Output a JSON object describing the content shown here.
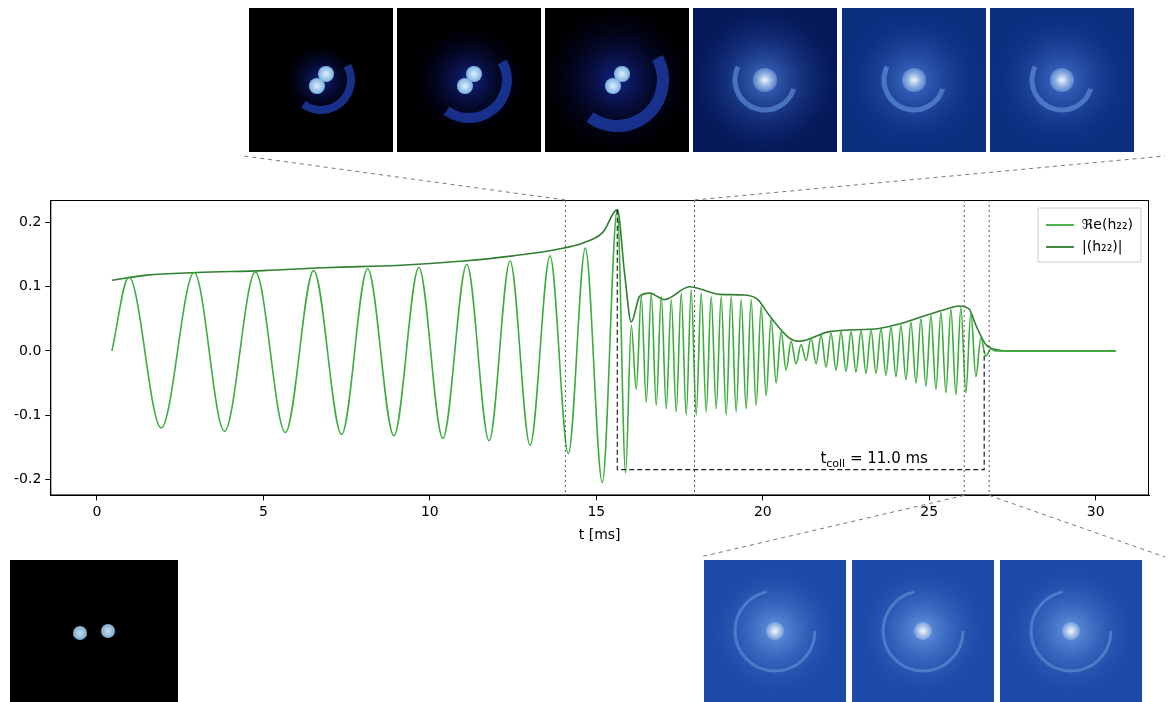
{
  "chart_data": {
    "type": "line",
    "x_label": "t [ms]",
    "xlim": [
      -1.4,
      31.6
    ],
    "xticks": [
      0,
      5,
      10,
      15,
      20,
      25,
      30
    ],
    "ylim": [
      -0.225,
      0.235
    ],
    "yticks": [
      -0.2,
      -0.1,
      {
        "value": 0,
        "label": "0.0"
      },
      0.1,
      0.2
    ],
    "grid": false,
    "legend": "upper right",
    "series": [
      {
        "name": "ℜe(h₂₂)",
        "color": "#3cac3c",
        "x": [
          0.45,
          0.96,
          1.93,
          2.92,
          3.83,
          4.76,
          5.66,
          6.51,
          7.35,
          8.13,
          8.92,
          9.67,
          10.39,
          11.11,
          11.78,
          12.41,
          13.01,
          13.61,
          14.16,
          14.67,
          15.18,
          15.63,
          15.88,
          16.05,
          16.2,
          16.35,
          16.5,
          16.65,
          16.8,
          16.95,
          17.1,
          17.25,
          17.4,
          17.55,
          17.7,
          17.85,
          18.0,
          18.15,
          18.3,
          18.45,
          18.6,
          18.75,
          18.9,
          19.05,
          19.2,
          19.35,
          19.5,
          19.65,
          19.8,
          19.95,
          20.1,
          20.25,
          20.4,
          20.55,
          20.7,
          20.85,
          21.0,
          21.15,
          21.3,
          21.45,
          21.6,
          21.75,
          21.9,
          22.05,
          22.2,
          22.35,
          22.5,
          22.65,
          22.8,
          22.95,
          23.1,
          23.25,
          23.4,
          23.55,
          23.7,
          23.85,
          24.0,
          24.15,
          24.3,
          24.45,
          24.6,
          24.75,
          24.9,
          25.05,
          25.2,
          25.35,
          25.5,
          25.65,
          25.8,
          25.95,
          26.1,
          26.25,
          26.4,
          26.55,
          26.7,
          26.85,
          27.0,
          30.6
        ],
        "values": [
          0,
          0.115,
          -0.12,
          0.122,
          -0.125,
          0.123,
          -0.127,
          0.125,
          -0.13,
          0.128,
          -0.132,
          0.13,
          -0.136,
          0.135,
          -0.14,
          0.14,
          -0.147,
          0.148,
          -0.16,
          0.16,
          -0.205,
          0.22,
          -0.19,
          0.04,
          -0.06,
          0.085,
          -0.08,
          0.09,
          -0.085,
          0.085,
          -0.09,
          0.08,
          -0.095,
          0.09,
          -0.1,
          0.095,
          -0.1,
          0.09,
          -0.095,
          0.085,
          -0.09,
          0.085,
          -0.1,
          0.085,
          -0.095,
          0.08,
          -0.09,
          0.08,
          -0.085,
          0.07,
          -0.07,
          0.05,
          -0.05,
          0.03,
          -0.03,
          0.015,
          -0.02,
          0.01,
          -0.015,
          0.02,
          -0.02,
          0.025,
          -0.025,
          0.028,
          -0.03,
          0.03,
          -0.032,
          0.03,
          -0.033,
          0.032,
          -0.035,
          0.033,
          -0.035,
          0.035,
          -0.038,
          0.037,
          -0.04,
          0.04,
          -0.045,
          0.045,
          -0.05,
          0.05,
          -0.055,
          0.055,
          -0.06,
          0.06,
          -0.065,
          0.065,
          -0.068,
          0.068,
          -0.065,
          0.06,
          -0.04,
          0.02,
          -0.008,
          0.003,
          0,
          0
        ]
      },
      {
        "name": "|(h₂₂)|",
        "color": "#2f7f2f",
        "x": [
          0.45,
          1.5,
          3,
          5,
          7,
          9,
          11,
          12.5,
          13.8,
          14.6,
          15.2,
          15.63,
          15.85,
          16.05,
          16.3,
          16.6,
          17.05,
          17.8,
          18.7,
          19.45,
          19.85,
          20.2,
          20.8,
          21.1,
          22.0,
          23.5,
          24.1,
          24.7,
          25.5,
          25.9,
          26.2,
          26.4,
          26.7,
          27.0,
          27.4,
          30.6
        ],
        "values": [
          0.11,
          0.118,
          0.122,
          0.125,
          0.13,
          0.133,
          0.14,
          0.148,
          0.158,
          0.168,
          0.185,
          0.22,
          0.12,
          0.045,
          0.085,
          0.09,
          0.08,
          0.1,
          0.088,
          0.087,
          0.08,
          0.055,
          0.02,
          0.015,
          0.03,
          0.035,
          0.042,
          0.052,
          0.065,
          0.07,
          0.065,
          0.04,
          0.01,
          0.002,
          0,
          0
        ]
      }
    ],
    "markers": [
      14.07,
      17.95,
      26.05,
      26.8
    ],
    "annotation": {
      "text": "t",
      "subscript": "coll",
      "suffix": " = 11.0 ms",
      "x_start": 15.63,
      "x_end": 26.65,
      "y": -0.185,
      "left_top": 0.22,
      "right_top": 0.0
    }
  }
}
